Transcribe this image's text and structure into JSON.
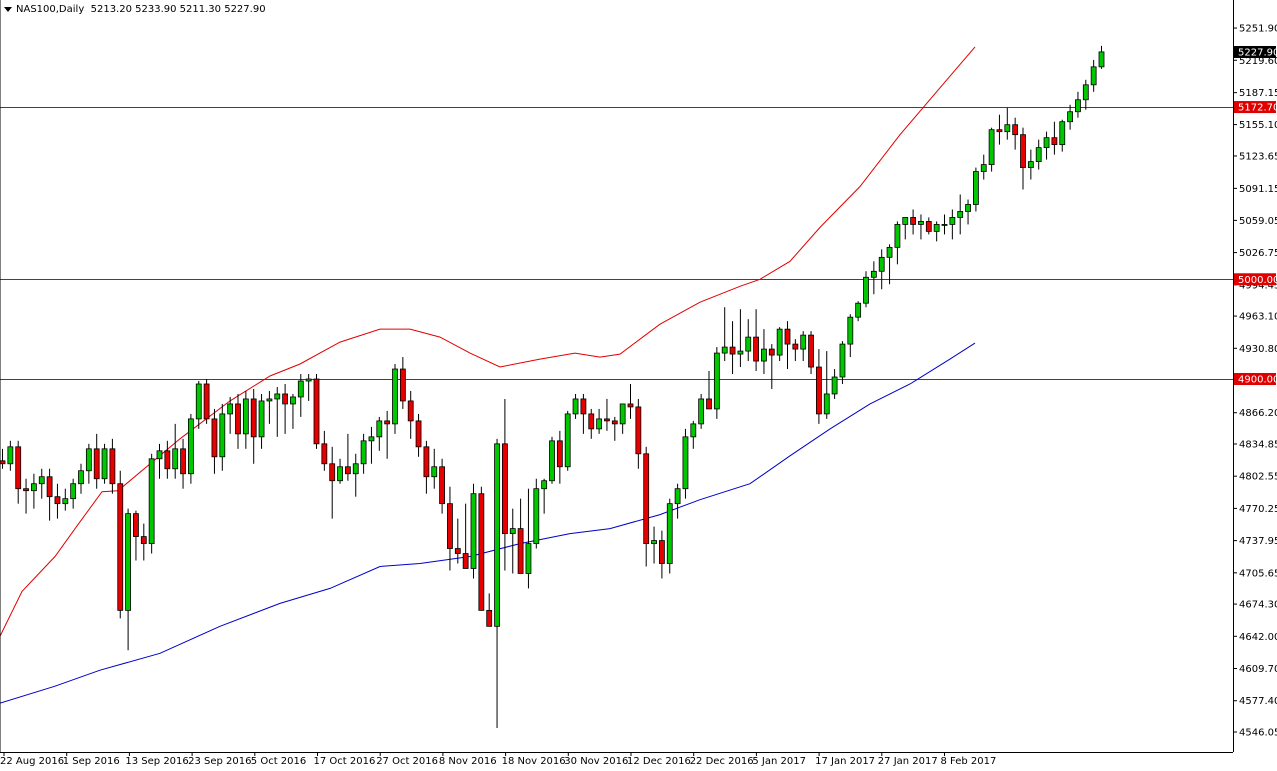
{
  "header": {
    "symbol_timeframe": "NAS100,Daily",
    "ohlc": "5213.20 5233.90 5211.30 5227.90"
  },
  "colors": {
    "bull": "#00c800",
    "bear": "#e60000",
    "wick": "#000000",
    "ma_fast": "#e00000",
    "ma_slow": "#0000c8",
    "hline": "#e00000",
    "axis": "#000000",
    "bg": "#ffffff"
  },
  "chart_data": {
    "type": "candlestick",
    "symbol": "NAS100",
    "timeframe": "Daily",
    "ylim": [
      4530,
      5268
    ],
    "y_ticks": [
      "5251.90",
      "5219.60",
      "5187.15",
      "5155.10",
      "5123.65",
      "5091.15",
      "5059.05",
      "5026.75",
      "4994.45",
      "4963.10",
      "4930.80",
      "4866.20",
      "4834.85",
      "4802.55",
      "4770.25",
      "4737.95",
      "4705.65",
      "4674.30",
      "4642.00",
      "4609.70",
      "4577.40",
      "4546.05"
    ],
    "x_labels": [
      "22 Aug 2016",
      "1 Sep 2016",
      "13 Sep 2016",
      "23 Sep 2016",
      "5 Oct 2016",
      "17 Oct 2016",
      "27 Oct 2016",
      "8 Nov 2016",
      "18 Nov 2016",
      "30 Nov 2016",
      "12 Dec 2016",
      "22 Dec 2016",
      "5 Jan 2017",
      "17 Jan 2017",
      "27 Jan 2017",
      "8 Feb 2017"
    ],
    "horizontal_levels": [
      {
        "value": 5172.7,
        "label": "5172.70"
      },
      {
        "value": 5000.0,
        "label": "5000.00"
      },
      {
        "value": 4900.0,
        "label": "4900.00"
      }
    ],
    "last_price": {
      "value": 5227.9,
      "label": "5227.90"
    },
    "candles": [
      [
        4818,
        4830,
        4810,
        4815
      ],
      [
        4815,
        4838,
        4808,
        4832
      ],
      [
        4832,
        4838,
        4775,
        4790
      ],
      [
        4790,
        4800,
        4765,
        4788
      ],
      [
        4788,
        4805,
        4770,
        4795
      ],
      [
        4795,
        4810,
        4780,
        4802
      ],
      [
        4802,
        4810,
        4758,
        4782
      ],
      [
        4782,
        4795,
        4760,
        4775
      ],
      [
        4775,
        4790,
        4768,
        4780
      ],
      [
        4780,
        4800,
        4770,
        4795
      ],
      [
        4795,
        4815,
        4785,
        4808
      ],
      [
        4808,
        4835,
        4795,
        4830
      ],
      [
        4830,
        4845,
        4790,
        4800
      ],
      [
        4800,
        4835,
        4795,
        4830
      ],
      [
        4830,
        4840,
        4785,
        4795
      ],
      [
        4795,
        4808,
        4660,
        4668
      ],
      [
        4668,
        4770,
        4628,
        4765
      ],
      [
        4765,
        4768,
        4718,
        4742
      ],
      [
        4742,
        4755,
        4718,
        4735
      ],
      [
        4735,
        4825,
        4725,
        4820
      ],
      [
        4820,
        4835,
        4800,
        4828
      ],
      [
        4828,
        4838,
        4800,
        4810
      ],
      [
        4810,
        4855,
        4800,
        4830
      ],
      [
        4830,
        4840,
        4790,
        4805
      ],
      [
        4805,
        4865,
        4795,
        4860
      ],
      [
        4860,
        4898,
        4850,
        4895
      ],
      [
        4895,
        4900,
        4855,
        4860
      ],
      [
        4860,
        4870,
        4805,
        4822
      ],
      [
        4822,
        4875,
        4808,
        4865
      ],
      [
        4865,
        4882,
        4845,
        4875
      ],
      [
        4875,
        4885,
        4830,
        4845
      ],
      [
        4845,
        4888,
        4830,
        4880
      ],
      [
        4880,
        4890,
        4815,
        4842
      ],
      [
        4842,
        4885,
        4830,
        4878
      ],
      [
        4878,
        4888,
        4855,
        4880
      ],
      [
        4880,
        4892,
        4842,
        4885
      ],
      [
        4885,
        4895,
        4845,
        4875
      ],
      [
        4875,
        4885,
        4850,
        4882
      ],
      [
        4882,
        4905,
        4862,
        4898
      ],
      [
        4898,
        4905,
        4878,
        4900
      ],
      [
        4900,
        4905,
        4830,
        4835
      ],
      [
        4835,
        4848,
        4808,
        4815
      ],
      [
        4815,
        4832,
        4760,
        4798
      ],
      [
        4798,
        4820,
        4795,
        4812
      ],
      [
        4812,
        4845,
        4798,
        4805
      ],
      [
        4805,
        4825,
        4782,
        4815
      ],
      [
        4815,
        4845,
        4805,
        4838
      ],
      [
        4838,
        4852,
        4815,
        4842
      ],
      [
        4842,
        4862,
        4828,
        4858
      ],
      [
        4858,
        4868,
        4820,
        4855
      ],
      [
        4855,
        4915,
        4845,
        4910
      ],
      [
        4910,
        4922,
        4870,
        4878
      ],
      [
        4878,
        4888,
        4840,
        4858
      ],
      [
        4858,
        4865,
        4822,
        4832
      ],
      [
        4832,
        4838,
        4785,
        4802
      ],
      [
        4802,
        4830,
        4790,
        4812
      ],
      [
        4812,
        4820,
        4765,
        4775
      ],
      [
        4775,
        4792,
        4708,
        4730
      ],
      [
        4730,
        4760,
        4715,
        4725
      ],
      [
        4725,
        4775,
        4710,
        4710
      ],
      [
        4710,
        4795,
        4700,
        4785
      ],
      [
        4785,
        4792,
        4675,
        4668
      ],
      [
        4668,
        4685,
        4655,
        4652
      ],
      [
        4652,
        4840,
        4550,
        4835
      ],
      [
        4835,
        4880,
        4708,
        4745
      ],
      [
        4745,
        4770,
        4705,
        4750
      ],
      [
        4750,
        4780,
        4705,
        4705
      ],
      [
        4705,
        4790,
        4690,
        4735
      ],
      [
        4735,
        4800,
        4730,
        4790
      ],
      [
        4790,
        4800,
        4765,
        4798
      ],
      [
        4798,
        4842,
        4795,
        4838
      ],
      [
        4838,
        4848,
        4795,
        4812
      ],
      [
        4812,
        4868,
        4808,
        4865
      ],
      [
        4865,
        4885,
        4860,
        4880
      ],
      [
        4880,
        4885,
        4845,
        4865
      ],
      [
        4865,
        4870,
        4840,
        4850
      ],
      [
        4850,
        4870,
        4845,
        4860
      ],
      [
        4860,
        4880,
        4848,
        4858
      ],
      [
        4858,
        4862,
        4838,
        4855
      ],
      [
        4855,
        4875,
        4845,
        4875
      ],
      [
        4875,
        4895,
        4860,
        4872
      ],
      [
        4872,
        4880,
        4810,
        4825
      ],
      [
        4825,
        4832,
        4712,
        4735
      ],
      [
        4735,
        4752,
        4715,
        4738
      ],
      [
        4738,
        4748,
        4700,
        4715
      ],
      [
        4715,
        4780,
        4705,
        4775
      ],
      [
        4775,
        4795,
        4760,
        4790
      ],
      [
        4790,
        4850,
        4780,
        4842
      ],
      [
        4842,
        4858,
        4830,
        4855
      ],
      [
        4855,
        4885,
        4850,
        4880
      ],
      [
        4880,
        4908,
        4870,
        4870
      ],
      [
        4870,
        4932,
        4860,
        4926
      ],
      [
        4926,
        4972,
        4918,
        4932
      ],
      [
        4932,
        4958,
        4905,
        4925
      ],
      [
        4925,
        4970,
        4912,
        4928
      ],
      [
        4928,
        4960,
        4918,
        4942
      ],
      [
        4942,
        4970,
        4908,
        4918
      ],
      [
        4918,
        4950,
        4905,
        4930
      ],
      [
        4930,
        4935,
        4890,
        4924
      ],
      [
        4924,
        4952,
        4918,
        4950
      ],
      [
        4950,
        4958,
        4910,
        4935
      ],
      [
        4935,
        4940,
        4918,
        4930
      ],
      [
        4930,
        4948,
        4918,
        4944
      ],
      [
        4944,
        4948,
        4905,
        4912
      ],
      [
        4912,
        4930,
        4855,
        4865
      ],
      [
        4865,
        4928,
        4860,
        4885
      ],
      [
        4885,
        4910,
        4880,
        4902
      ],
      [
        4902,
        4938,
        4895,
        4935
      ],
      [
        4935,
        4965,
        4922,
        4962
      ],
      [
        4962,
        4978,
        4958,
        4976
      ],
      [
        4976,
        5008,
        4972,
        5002
      ],
      [
        5002,
        5018,
        4985,
        5008
      ],
      [
        5008,
        5030,
        4990,
        5022
      ],
      [
        5022,
        5035,
        4995,
        5032
      ],
      [
        5032,
        5058,
        5015,
        5055
      ],
      [
        5055,
        5062,
        5040,
        5062
      ],
      [
        5062,
        5070,
        5045,
        5055
      ],
      [
        5055,
        5065,
        5040,
        5058
      ],
      [
        5058,
        5062,
        5045,
        5048
      ],
      [
        5048,
        5058,
        5038,
        5055
      ],
      [
        5055,
        5065,
        5045,
        5055
      ],
      [
        5055,
        5070,
        5040,
        5062
      ],
      [
        5062,
        5085,
        5045,
        5068
      ],
      [
        5068,
        5080,
        5055,
        5075
      ],
      [
        5075,
        5112,
        5068,
        5108
      ],
      [
        5108,
        5125,
        5100,
        5115
      ],
      [
        5115,
        5152,
        5108,
        5150
      ],
      [
        5150,
        5165,
        5135,
        5148
      ],
      [
        5148,
        5172,
        5140,
        5155
      ],
      [
        5155,
        5162,
        5130,
        5145
      ],
      [
        5145,
        5152,
        5090,
        5112
      ],
      [
        5112,
        5130,
        5100,
        5118
      ],
      [
        5118,
        5140,
        5110,
        5132
      ],
      [
        5132,
        5148,
        5120,
        5142
      ],
      [
        5142,
        5158,
        5125,
        5135
      ],
      [
        5135,
        5160,
        5128,
        5158
      ],
      [
        5158,
        5175,
        5150,
        5168
      ],
      [
        5168,
        5188,
        5162,
        5180
      ],
      [
        5180,
        5200,
        5170,
        5195
      ],
      [
        5195,
        5220,
        5188,
        5213
      ],
      [
        5213,
        5234,
        5211,
        5228
      ]
    ],
    "ma_fast": [
      [
        0,
        4642
      ],
      [
        22,
        4687
      ],
      [
        55,
        4722
      ],
      [
        78,
        4754
      ],
      [
        102,
        4787
      ],
      [
        118,
        4788
      ],
      [
        180,
        4840
      ],
      [
        230,
        4878
      ],
      [
        270,
        4903
      ],
      [
        300,
        4915
      ],
      [
        340,
        4937
      ],
      [
        380,
        4950
      ],
      [
        410,
        4950
      ],
      [
        440,
        4942
      ],
      [
        470,
        4926
      ],
      [
        500,
        4912
      ],
      [
        540,
        4920
      ],
      [
        575,
        4926
      ],
      [
        600,
        4922
      ],
      [
        620,
        4925
      ],
      [
        660,
        4955
      ],
      [
        700,
        4977
      ],
      [
        740,
        4993
      ],
      [
        760,
        5000
      ],
      [
        790,
        5018
      ],
      [
        820,
        5052
      ],
      [
        860,
        5093
      ],
      [
        900,
        5145
      ],
      [
        940,
        5192
      ],
      [
        975,
        5233
      ]
    ],
    "ma_slow": [
      [
        0,
        4575
      ],
      [
        55,
        4592
      ],
      [
        100,
        4608
      ],
      [
        160,
        4625
      ],
      [
        220,
        4652
      ],
      [
        280,
        4675
      ],
      [
        330,
        4690
      ],
      [
        380,
        4712
      ],
      [
        420,
        4715
      ],
      [
        470,
        4722
      ],
      [
        520,
        4735
      ],
      [
        570,
        4745
      ],
      [
        610,
        4750
      ],
      [
        660,
        4764
      ],
      [
        700,
        4779
      ],
      [
        750,
        4795
      ],
      [
        790,
        4823
      ],
      [
        830,
        4850
      ],
      [
        870,
        4875
      ],
      [
        910,
        4895
      ],
      [
        950,
        4920
      ],
      [
        975,
        4936
      ]
    ]
  }
}
